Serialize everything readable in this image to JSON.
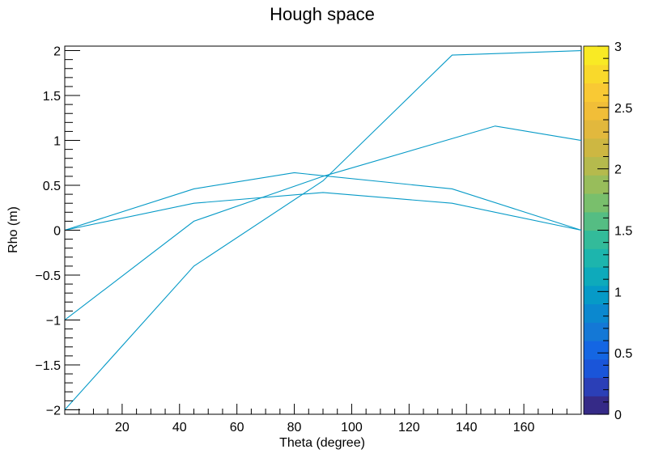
{
  "chart_data": {
    "type": "heatmap",
    "title": "Hough space",
    "xlabel": "Theta (degree)",
    "ylabel": "Rho (m)",
    "xlim": [
      0,
      180
    ],
    "ylim": [
      -2.05,
      2.05
    ],
    "x_ticks": [
      20,
      40,
      60,
      80,
      100,
      120,
      140,
      160
    ],
    "y_ticks": [
      -2,
      -1.5,
      -1,
      -0.5,
      0,
      0.5,
      1,
      1.5,
      2
    ],
    "x_tick_labels": [
      "20",
      "40",
      "60",
      "80",
      "100",
      "120",
      "140",
      "160"
    ],
    "y_tick_labels": [
      "−2",
      "−1.5",
      "−1",
      "−0.5",
      "0",
      "0.5",
      "1",
      "1.5",
      "2"
    ],
    "colorbar": {
      "range": [
        0,
        3
      ],
      "ticks": [
        0,
        0.5,
        1,
        1.5,
        2,
        2.5,
        3
      ],
      "tick_labels": [
        "0",
        "0.5",
        "1",
        "1.5",
        "2",
        "2.5",
        "3"
      ],
      "colors": [
        "#352a87",
        "#2b3fb7",
        "#1a55d9",
        "#1466e3",
        "#1478d6",
        "#0b88cf",
        "#069ac7",
        "#0eaabb",
        "#1db5ad",
        "#33bb9a",
        "#55bd83",
        "#79bf6c",
        "#98bd5b",
        "#b5ba4d",
        "#cdb742",
        "#e2b83d",
        "#f1be38",
        "#f9c934",
        "#f9d92b",
        "#f9ea24"
      ]
    },
    "series": [
      {
        "points": [
          [
            0,
            0
          ],
          [
            45,
            0.3
          ],
          [
            90,
            0.42
          ],
          [
            135,
            0.3
          ],
          [
            180,
            0
          ]
        ],
        "value": 1
      },
      {
        "points": [
          [
            0,
            0
          ],
          [
            45,
            0.46
          ],
          [
            80,
            0.64
          ],
          [
            135,
            0.46
          ],
          [
            180,
            0
          ]
        ],
        "value": 1
      },
      {
        "points": [
          [
            0,
            -1
          ],
          [
            45,
            0.1
          ],
          [
            90,
            0.6
          ],
          [
            150,
            1.16
          ],
          [
            180,
            1
          ]
        ],
        "value": 1
      },
      {
        "points": [
          [
            0,
            -2
          ],
          [
            45,
            -0.4
          ],
          [
            90,
            0.55
          ],
          [
            135,
            1.95
          ],
          [
            180,
            2
          ]
        ],
        "value": 1
      }
    ],
    "grid": false,
    "legend": "none"
  }
}
